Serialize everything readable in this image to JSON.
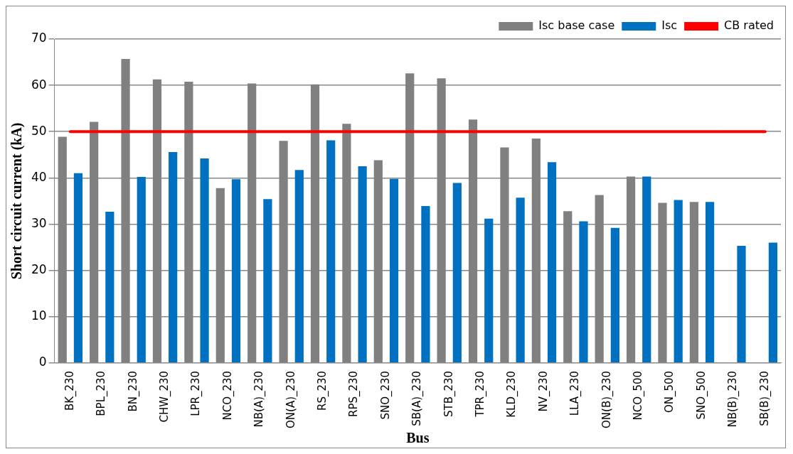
{
  "chart_data": {
    "type": "bar",
    "xlabel": "Bus",
    "ylabel": "Short circuit current (kA)",
    "categories": [
      "BK_230",
      "BPL_230",
      "BN_230",
      "CHW_230",
      "LPR_230",
      "NCO_230",
      "NB(A)_230",
      "ON(A)_230",
      "RS_230",
      "RPS_230",
      "SNO_230",
      "SB(A)_230",
      "STB_230",
      "TPR_230",
      "KLD_230",
      "NV_230",
      "LLA_230",
      "ON(B)_230",
      "NCO_500",
      "ON_500",
      "SNO_500",
      "NB(B)_230",
      "SB(B)_230"
    ],
    "series": [
      {
        "name": "Isc base case",
        "color": "#808080",
        "values": [
          48.9,
          52.1,
          65.7,
          61.3,
          60.8,
          37.8,
          60.4,
          48.0,
          60.2,
          51.7,
          43.8,
          62.6,
          61.5,
          52.6,
          46.6,
          48.5,
          32.8,
          36.3,
          40.3,
          34.6,
          34.8,
          null,
          null
        ]
      },
      {
        "name": "Isc",
        "color": "#0070c0",
        "values": [
          41.0,
          32.7,
          40.2,
          45.6,
          44.2,
          39.7,
          35.4,
          41.7,
          48.1,
          42.5,
          39.8,
          33.9,
          38.9,
          31.2,
          35.7,
          43.4,
          30.6,
          29.2,
          40.3,
          35.2,
          34.8,
          25.3,
          26.0
        ]
      },
      {
        "name": "CB rated",
        "type": "line",
        "color": "#ff0000",
        "values": [
          50,
          50,
          50,
          50,
          50,
          50,
          50,
          50,
          50,
          50,
          50,
          50,
          50,
          50,
          50,
          50,
          50,
          50,
          50,
          50,
          50,
          50,
          50
        ]
      }
    ],
    "ylim": [
      0,
      70
    ],
    "yticks": [
      0,
      10,
      20,
      30,
      40,
      50,
      60,
      70
    ],
    "grid": "y",
    "legend": "top right",
    "marker": "none"
  }
}
